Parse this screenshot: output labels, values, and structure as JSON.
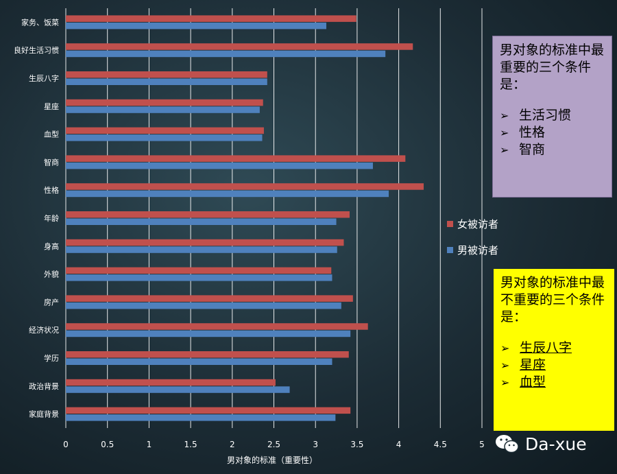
{
  "chart_data": {
    "type": "bar",
    "orientation": "horizontal",
    "categories": [
      "家务、饭菜",
      "良好生活习惯",
      "生辰八字",
      "星座",
      "血型",
      "智商",
      "性格",
      "年龄",
      "身高",
      "外貌",
      "房产",
      "经济状况",
      "学历",
      "政治背景",
      "家庭背景"
    ],
    "series": [
      {
        "name": "女被访者",
        "color": "#c0504d",
        "values": [
          3.49,
          4.17,
          2.42,
          2.37,
          2.38,
          4.08,
          4.3,
          3.41,
          3.34,
          3.19,
          3.45,
          3.63,
          3.4,
          2.52,
          3.42
        ]
      },
      {
        "name": "男被访者",
        "color": "#4f81bd",
        "values": [
          3.13,
          3.84,
          2.42,
          2.33,
          2.36,
          3.69,
          3.88,
          3.25,
          3.26,
          3.2,
          3.31,
          3.42,
          3.2,
          2.69,
          3.24
        ]
      }
    ],
    "xlabel": "男对象的标准（重要性）",
    "ylabel": "",
    "xlim": [
      0,
      5
    ],
    "xticks": [
      "0",
      "0.5",
      "1",
      "1.5",
      "2",
      "2.5",
      "3",
      "3.5",
      "4",
      "4.5",
      "5"
    ],
    "grid": true,
    "legend_position": "right"
  },
  "legend": [
    {
      "label": "女被访者",
      "color": "#c0504d"
    },
    {
      "label": "男被访者",
      "color": "#4f81bd"
    }
  ],
  "annotations": {
    "important": {
      "heading": "男对象的标准中最重要的三个条件是：",
      "items": [
        "生活习惯",
        "性格",
        "智商"
      ]
    },
    "unimportant": {
      "heading": "男对象的标准中最不重要的三个条件是：",
      "items": [
        "生辰八字",
        "星座",
        "血型"
      ]
    }
  },
  "watermark": {
    "text": "Da-xue",
    "icon": "wechat-icon"
  }
}
